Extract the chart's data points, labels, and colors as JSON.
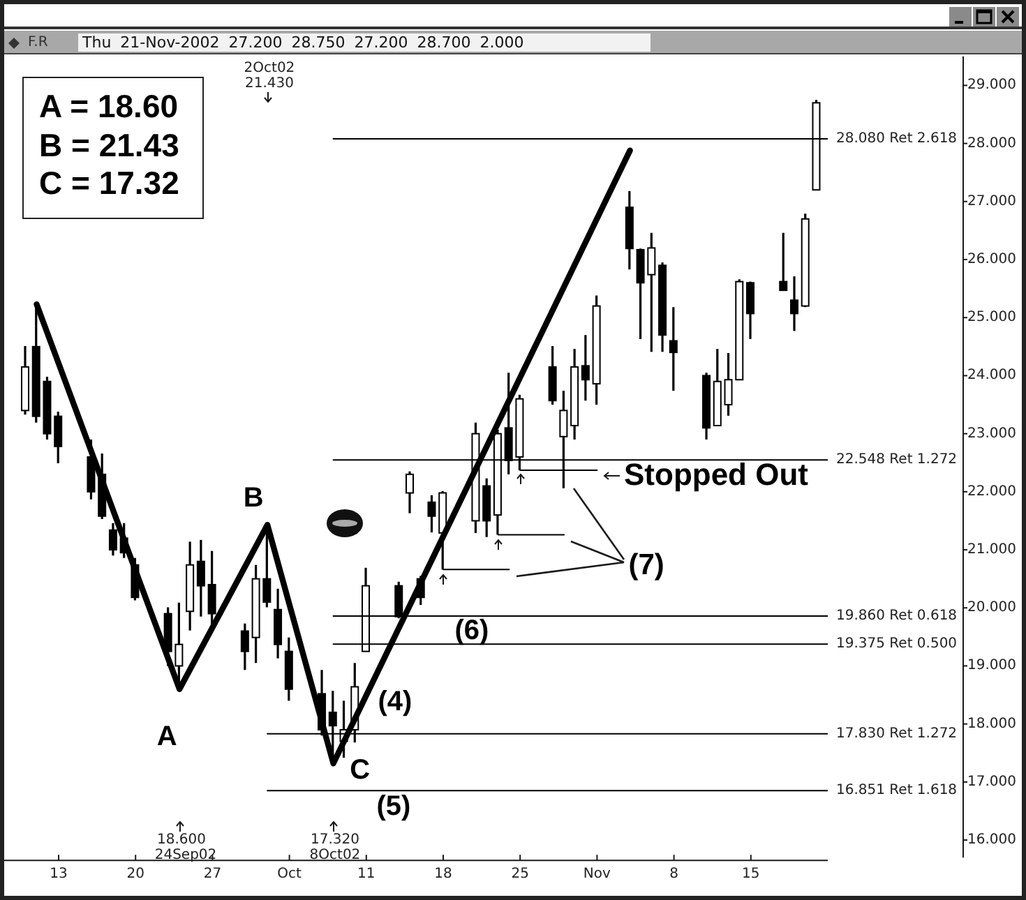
{
  "chart_data": {
    "type": "candlestick",
    "color": "#000000",
    "x": [
      "2002-09-10",
      "2002-09-11",
      "2002-09-12",
      "2002-09-13",
      "2002-09-16",
      "2002-09-17",
      "2002-09-18",
      "2002-09-19",
      "2002-09-20",
      "2002-09-23",
      "2002-09-24",
      "2002-09-25",
      "2002-09-26",
      "2002-09-27",
      "2002-09-30",
      "2002-10-01",
      "2002-10-02",
      "2002-10-03",
      "2002-10-04",
      "2002-10-07",
      "2002-10-08",
      "2002-10-09",
      "2002-10-10",
      "2002-10-11",
      "2002-10-14",
      "2002-10-15",
      "2002-10-16",
      "2002-10-17",
      "2002-10-18",
      "2002-10-21",
      "2002-10-22",
      "2002-10-23",
      "2002-10-24",
      "2002-10-25",
      "2002-10-28",
      "2002-10-29",
      "2002-10-30",
      "2002-10-31",
      "2002-11-01",
      "2002-11-04",
      "2002-11-05",
      "2002-11-06",
      "2002-11-07",
      "2002-11-08",
      "2002-11-11",
      "2002-11-12",
      "2002-11-13",
      "2002-11-14",
      "2002-11-15",
      "2002-11-18",
      "2002-11-19",
      "2002-11-20",
      "2002-11-21"
    ],
    "ohlc": [
      [
        23.4,
        24.51,
        23.33,
        24.15
      ],
      [
        24.5,
        25.23,
        23.19,
        23.3
      ],
      [
        23.9,
        23.98,
        22.9,
        23.0
      ],
      [
        23.3,
        23.38,
        22.49,
        22.78
      ],
      [
        22.6,
        22.9,
        21.87,
        22.0
      ],
      [
        22.3,
        22.66,
        21.53,
        21.58
      ],
      [
        21.34,
        21.46,
        20.9,
        21.0
      ],
      [
        21.2,
        21.46,
        20.86,
        20.95
      ],
      [
        20.74,
        20.86,
        20.13,
        20.18
      ],
      [
        19.9,
        20.01,
        19.0,
        19.25
      ],
      [
        19.0,
        20.09,
        18.6,
        19.37
      ],
      [
        19.94,
        21.14,
        19.61,
        20.74
      ],
      [
        20.8,
        21.17,
        19.85,
        20.38
      ],
      [
        20.4,
        20.98,
        19.65,
        19.9
      ],
      [
        19.6,
        19.73,
        18.93,
        19.25
      ],
      [
        19.49,
        20.74,
        19.05,
        20.5
      ],
      [
        20.5,
        21.43,
        20.01,
        20.1
      ],
      [
        19.97,
        20.33,
        19.13,
        19.37
      ],
      [
        19.25,
        19.49,
        18.4,
        18.6
      ],
      [
        18.52,
        18.93,
        17.8,
        17.9
      ],
      [
        18.2,
        18.57,
        17.32,
        17.97
      ],
      [
        17.7,
        18.4,
        17.42,
        17.9
      ],
      [
        17.9,
        19.05,
        17.68,
        18.64
      ],
      [
        19.25,
        20.69,
        19.25,
        20.38
      ],
      [
        20.38,
        20.45,
        19.82,
        19.85
      ],
      [
        21.98,
        22.35,
        21.63,
        22.3
      ],
      [
        20.5,
        20.55,
        20.05,
        20.18
      ],
      [
        21.82,
        21.94,
        21.3,
        21.58
      ],
      [
        21.29,
        22.01,
        20.66,
        21.98
      ],
      [
        21.5,
        23.19,
        21.29,
        23.0
      ],
      [
        22.1,
        22.23,
        21.22,
        21.5
      ],
      [
        21.6,
        23.07,
        21.26,
        23.0
      ],
      [
        23.1,
        24.05,
        22.3,
        22.54
      ],
      [
        22.6,
        23.67,
        22.37,
        23.6
      ],
      [
        24.15,
        24.51,
        23.5,
        23.57
      ],
      [
        22.95,
        23.74,
        22.06,
        23.4
      ],
      [
        23.14,
        24.46,
        22.9,
        24.15
      ],
      [
        24.17,
        24.7,
        23.57,
        23.93
      ],
      [
        23.86,
        25.38,
        23.5,
        25.2
      ],
      [
        26.9,
        27.18,
        25.83,
        26.19
      ],
      [
        26.17,
        26.19,
        24.63,
        25.6
      ],
      [
        25.74,
        26.46,
        24.41,
        26.2
      ],
      [
        25.9,
        25.95,
        24.41,
        24.7
      ],
      [
        24.6,
        25.18,
        23.74,
        24.4
      ],
      [
        24.0,
        24.05,
        22.9,
        23.1
      ],
      [
        23.14,
        24.46,
        23.14,
        23.9
      ],
      [
        23.5,
        24.39,
        23.31,
        23.93
      ],
      [
        23.93,
        25.66,
        23.93,
        25.62
      ],
      [
        25.6,
        25.62,
        24.63,
        25.07
      ],
      [
        25.62,
        26.46,
        25.47,
        25.47
      ],
      [
        25.3,
        25.71,
        24.77,
        25.07
      ],
      [
        25.2,
        26.79,
        25.18,
        26.7
      ],
      [
        27.2,
        28.75,
        27.2,
        28.7
      ]
    ],
    "series": [
      {
        "type": "line",
        "color": "#000000",
        "x": [
          "2002-09-11",
          "2002-09-24",
          "2002-10-02",
          "2002-10-08",
          "2002-11-04"
        ],
        "values": [
          25.23,
          18.6,
          21.43,
          17.32,
          27.88
        ]
      },
      {
        "type": "line",
        "color": "#000000",
        "x": [
          "2002-10-18",
          "2002-10-24"
        ],
        "values": [
          20.66,
          20.66
        ]
      },
      {
        "type": "line",
        "color": "#000000",
        "x": [
          "2002-10-23",
          "2002-10-29"
        ],
        "values": [
          21.26,
          21.26
        ]
      },
      {
        "type": "line",
        "color": "#000000",
        "x": [
          "2002-10-25",
          "2002-11-01"
        ],
        "values": [
          22.37,
          22.37
        ]
      },
      {
        "type": "line",
        "color": "#000000",
        "x": [
          "2002-10-08",
          "2002-11-22"
        ],
        "values": [
          28.08,
          28.08
        ]
      },
      {
        "type": "line",
        "color": "#000000",
        "x": [
          "2002-10-08",
          "2002-11-22"
        ],
        "values": [
          22.548,
          22.548
        ]
      },
      {
        "type": "line",
        "color": "#000000",
        "x": [
          "2002-10-08",
          "2002-11-22"
        ],
        "values": [
          19.86,
          19.86
        ]
      },
      {
        "type": "line",
        "color": "#000000",
        "x": [
          "2002-10-08",
          "2002-11-22"
        ],
        "values": [
          19.375,
          19.375
        ]
      },
      {
        "type": "line",
        "color": "#000000",
        "x": [
          "2002-10-02",
          "2002-11-22"
        ],
        "values": [
          17.83,
          17.83
        ]
      },
      {
        "type": "line",
        "color": "#000000",
        "x": [
          "2002-10-02",
          "2002-11-22"
        ],
        "values": [
          16.851,
          16.851
        ]
      }
    ],
    "xlim": [
      "2002-09-08",
      "2002-11-22"
    ],
    "xticks": [
      {
        "value": "2002-09-13",
        "label": "13"
      },
      {
        "value": "2002-09-20",
        "label": "20"
      },
      {
        "value": "2002-09-27",
        "label": "27"
      },
      {
        "value": "2002-10-04",
        "label": "Oct"
      },
      {
        "value": "2002-10-11",
        "label": "11"
      },
      {
        "value": "2002-10-18",
        "label": "18"
      },
      {
        "value": "2002-10-25",
        "label": "25"
      },
      {
        "value": "2002-11-01",
        "label": "Nov"
      },
      {
        "value": "2002-11-08",
        "label": "8"
      },
      {
        "value": "2002-11-15",
        "label": "15"
      }
    ],
    "ylim": [
      15.65,
      29.5
    ],
    "yticks": [
      {
        "value": 16,
        "label": "16.000"
      },
      {
        "value": 17,
        "label": "17.000"
      },
      {
        "value": 18,
        "label": "18.000"
      },
      {
        "value": 19,
        "label": "19.000"
      },
      {
        "value": 20,
        "label": "20.000"
      },
      {
        "value": 21,
        "label": "21.000"
      },
      {
        "value": 22,
        "label": "22.000"
      },
      {
        "value": 23,
        "label": "23.000"
      },
      {
        "value": 24,
        "label": "24.000"
      },
      {
        "value": 25,
        "label": "25.000"
      },
      {
        "value": 26,
        "label": "26.000"
      },
      {
        "value": 27,
        "label": "27.000"
      },
      {
        "value": 28,
        "label": "28.000"
      },
      {
        "value": 29,
        "label": "29.000"
      }
    ],
    "marker": "none",
    "annotations": [
      "F.R",
      "Thu 21-Nov-2002 27.200 28.750 27.200 28.700 2.000",
      "A = 18.60",
      "B = 21.43",
      "C = 17.32",
      "2Oct02",
      "21.430",
      "18.600",
      "24Sep02",
      "17.320",
      "8Oct02",
      {
        "text": "A",
        "x": "2002-09-24",
        "y": 18.6
      },
      {
        "text": "B",
        "x": "2002-10-02",
        "y": 21.43
      },
      {
        "text": "C",
        "x": "2002-10-08",
        "y": 17.32
      },
      "(4)",
      "(5)",
      "(6)",
      {
        "text": "(7)",
        "x": "2002-10-29",
        "y": 21.26
      },
      "Stopped Out",
      {
        "text": "28.080 Ret 2.618",
        "x": "2002-11-22",
        "y": 28.08
      },
      {
        "text": "22.548 Ret 1.272",
        "x": "2002-11-22",
        "y": 22.548
      },
      {
        "text": "19.860 Ret 0.618",
        "x": "2002-11-22",
        "y": 19.86
      },
      {
        "text": "19.375 Ret 0.500",
        "x": "2002-11-22",
        "y": 19.375
      },
      {
        "text": "17.830 Ret 1.272",
        "x": "2002-11-22",
        "y": 17.83
      },
      {
        "text": "16.851 Ret 1.618",
        "x": "2002-11-22",
        "y": 16.851
      }
    ]
  }
}
